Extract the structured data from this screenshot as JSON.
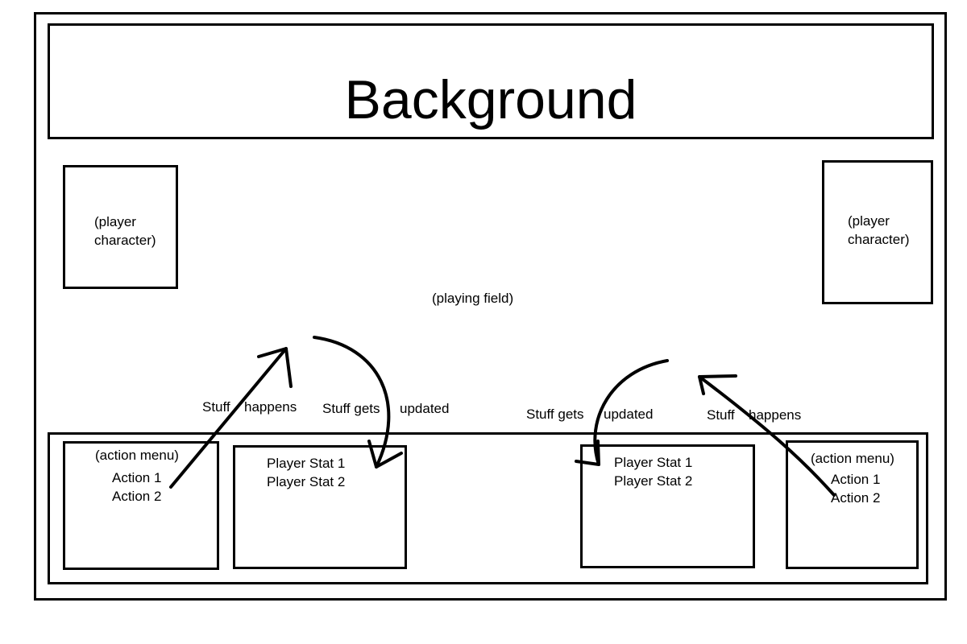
{
  "background": {
    "title": "Background"
  },
  "player_left": {
    "line1": "(player",
    "line2": "character)"
  },
  "player_right": {
    "line1": "(player",
    "line2": "character)"
  },
  "field": {
    "label": "(playing field)"
  },
  "annotations": {
    "left_happens_1": "Stuff",
    "left_happens_2": "happens",
    "left_updated_1": "Stuff gets",
    "left_updated_2": "updated",
    "right_updated_1": "Stuff gets",
    "right_updated_2": "updated",
    "right_happens_1": "Stuff",
    "right_happens_2": "happens"
  },
  "action_menu_left": {
    "title": "(action menu)",
    "items": [
      "Action 1",
      "Action 2"
    ]
  },
  "stats_left": {
    "items": [
      "Player Stat 1",
      "Player Stat 2"
    ]
  },
  "stats_right": {
    "items": [
      "Player Stat 1",
      "Player Stat 2"
    ]
  },
  "action_menu_right": {
    "title": "(action menu)",
    "items": [
      "Action 1",
      "Action 2"
    ]
  },
  "colors": {
    "stroke": "#000000",
    "page": "#ffffff"
  }
}
